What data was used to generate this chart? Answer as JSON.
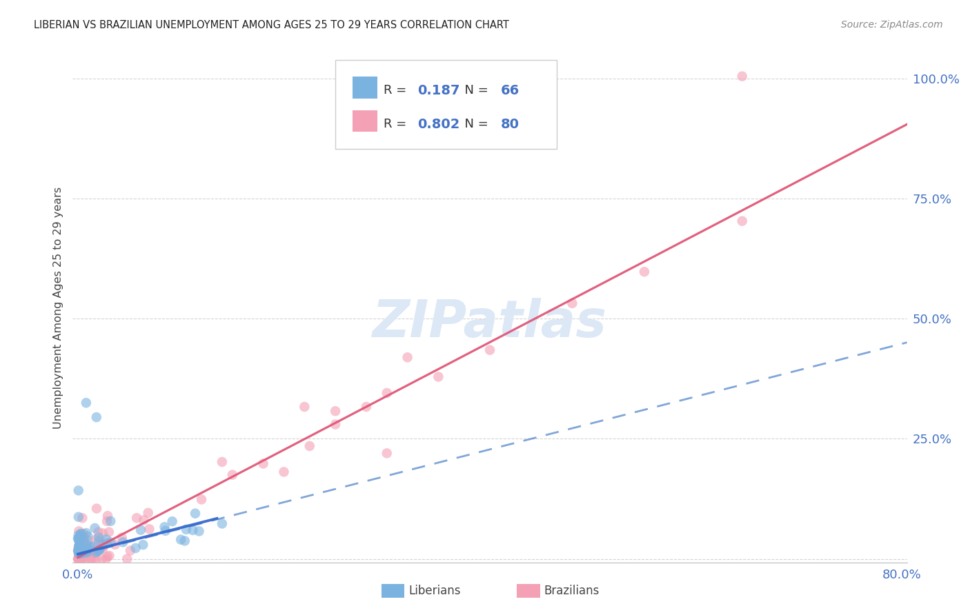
{
  "title": "LIBERIAN VS BRAZILIAN UNEMPLOYMENT AMONG AGES 25 TO 29 YEARS CORRELATION CHART",
  "source": "Source: ZipAtlas.com",
  "ylabel": "Unemployment Among Ages 25 to 29 years",
  "xlim": [
    -0.005,
    0.805
  ],
  "ylim": [
    -0.008,
    1.055
  ],
  "xticks": [
    0.0,
    0.1,
    0.2,
    0.3,
    0.4,
    0.5,
    0.6,
    0.7,
    0.8
  ],
  "xticklabels": [
    "0.0%",
    "",
    "",
    "",
    "",
    "",
    "",
    "",
    "80.0%"
  ],
  "yticks": [
    0.0,
    0.25,
    0.5,
    0.75,
    1.0
  ],
  "yticklabels": [
    "",
    "25.0%",
    "50.0%",
    "75.0%",
    "100.0%"
  ],
  "liberian_color": "#7bb3e0",
  "brazilian_color": "#f4a0b5",
  "lib_trend_solid_color": "#3366cc",
  "lib_trend_dash_color": "#5588cc",
  "bra_trend_color": "#e05878",
  "liberian_R": "0.187",
  "liberian_N": "66",
  "brazilian_R": "0.802",
  "brazilian_N": "80",
  "watermark": "ZIPatlas",
  "watermark_color": "#dce8f5",
  "grid_color": "#d0d0d0",
  "title_color": "#222222",
  "ylabel_color": "#444444",
  "tick_color": "#4472c4",
  "source_color": "#888888",
  "legend_text_color": "#333333",
  "legend_value_color": "#4472c4"
}
